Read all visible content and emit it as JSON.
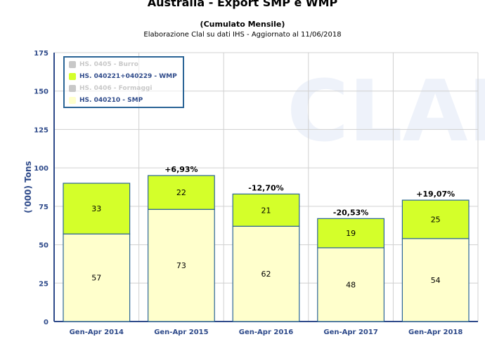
{
  "chart_data": {
    "type": "bar",
    "stacked": true,
    "title": "Australia - Export SMP e WMP",
    "subtitle": "(Cumulato Mensile)",
    "source": "Elaborazione Clal su dati IHS - Aggiornato al 11/06/2018",
    "watermark": "CLAL",
    "ylabel": "('000) Tons",
    "xlabel": "",
    "ylim": [
      0,
      175
    ],
    "yticks": [
      0,
      25,
      50,
      75,
      100,
      125,
      150,
      175
    ],
    "categories": [
      "Gen-Apr 2014",
      "Gen-Apr 2015",
      "Gen-Apr 2016",
      "Gen-Apr 2017",
      "Gen-Apr 2018"
    ],
    "series": [
      {
        "name": "HS. 040210 - SMP",
        "color": "#ffffcc",
        "values": [
          57,
          73,
          62,
          48,
          54
        ]
      },
      {
        "name": "HS. 040221+040229 - WMP",
        "color": "#d4ff2a",
        "values": [
          33,
          22,
          21,
          19,
          25
        ]
      }
    ],
    "change_labels": [
      "",
      "+6,93%",
      "-12,70%",
      "-20,53%",
      "+19,07%"
    ],
    "legend": [
      {
        "label": "HS. 0405 - Burro",
        "color": "#c8c8c8",
        "hidden": true
      },
      {
        "label": "HS. 040221+040229 - WMP",
        "color": "#d4ff2a",
        "hidden": false
      },
      {
        "label": "HS. 0406 - Formaggi",
        "color": "#c8c8c8",
        "hidden": true
      },
      {
        "label": "HS. 040210 - SMP",
        "color": "#ffffcc",
        "hidden": false
      }
    ],
    "legend_position": "top-left",
    "grid": true
  }
}
